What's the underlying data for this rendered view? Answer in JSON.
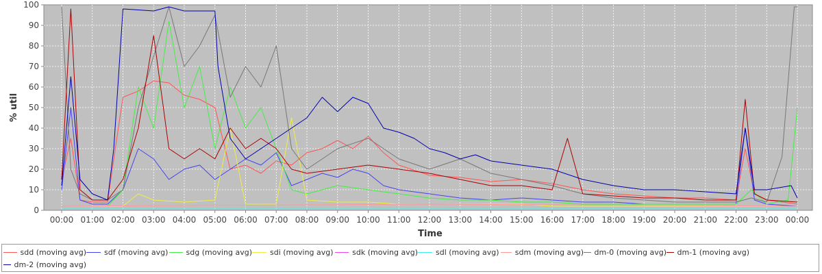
{
  "chart_data": {
    "type": "line",
    "title": "",
    "xlabel": "Time",
    "ylabel": "% util",
    "ylim": [
      0,
      100
    ],
    "y_ticks": [
      "0",
      "10",
      "20",
      "30",
      "40",
      "50",
      "60",
      "70",
      "80",
      "90",
      "100"
    ],
    "x_ticks": [
      "00:00",
      "01:00",
      "02:00",
      "03:00",
      "04:00",
      "05:00",
      "06:00",
      "07:00",
      "08:00",
      "09:00",
      "10:00",
      "11:00",
      "12:00",
      "13:00",
      "14:00",
      "15:00",
      "16:00",
      "17:00",
      "18:00",
      "19:00",
      "20:00",
      "21:00",
      "22:00",
      "23:00",
      "00:00"
    ],
    "x_hours": [
      0,
      1,
      2,
      3,
      4,
      5,
      6,
      7,
      8,
      9,
      10,
      11,
      12,
      13,
      14,
      15,
      16,
      17,
      18,
      19,
      20,
      21,
      22,
      23,
      24
    ],
    "grid": true,
    "legend_position": "bottom",
    "plot_background": "#c0c0c0",
    "series": [
      {
        "name": "sdd (moving avg)",
        "color": "#ff5555",
        "x": [
          0,
          0.3,
          0.6,
          1,
          1.5,
          1.75,
          2,
          2.5,
          3,
          3.5,
          4,
          4.5,
          5,
          5.5,
          6,
          6.5,
          7,
          7.5,
          8,
          8.5,
          9,
          9.5,
          10,
          10.5,
          11,
          12,
          13,
          14,
          15,
          16,
          17,
          18,
          19,
          20,
          21,
          22,
          22.3,
          22.6,
          23,
          24
        ],
        "y": [
          15,
          35,
          5,
          4,
          4,
          30,
          55,
          58,
          63,
          62,
          56,
          54,
          50,
          20,
          22,
          18,
          24,
          22,
          28,
          30,
          34,
          30,
          36,
          28,
          22,
          17,
          16,
          14,
          15,
          13,
          10,
          8,
          7,
          6,
          6,
          5,
          30,
          8,
          5,
          3
        ]
      },
      {
        "name": "sdf (moving avg)",
        "color": "#4444ee",
        "x": [
          0,
          0.3,
          0.6,
          1,
          1.5,
          2,
          2.5,
          3,
          3.5,
          4,
          4.5,
          5,
          5.5,
          6,
          6.5,
          7,
          7.5,
          8,
          8.5,
          9,
          9.5,
          10,
          10.5,
          11,
          12,
          13,
          14,
          15,
          16,
          17,
          18,
          19,
          20,
          21,
          22,
          22.3,
          22.6,
          23,
          24
        ],
        "y": [
          10,
          50,
          5,
          3,
          3,
          10,
          30,
          25,
          15,
          20,
          22,
          15,
          20,
          25,
          22,
          28,
          12,
          15,
          18,
          16,
          20,
          18,
          12,
          10,
          8,
          6,
          5,
          6,
          5,
          4,
          4,
          3,
          3,
          3,
          3,
          40,
          5,
          3,
          2
        ]
      },
      {
        "name": "sdg (moving avg)",
        "color": "#44ee44",
        "x": [
          0,
          0.5,
          1,
          1.5,
          2,
          2.5,
          3,
          3.5,
          4,
          4.5,
          5,
          5.5,
          6,
          6.5,
          7,
          7.5,
          8,
          9,
          10,
          11,
          12,
          13,
          14,
          15,
          16,
          17,
          18,
          19,
          20,
          21,
          22,
          22.5,
          23,
          23.7,
          24
        ],
        "y": [
          2,
          2,
          2,
          2,
          10,
          60,
          40,
          92,
          50,
          70,
          30,
          60,
          40,
          50,
          30,
          10,
          8,
          12,
          10,
          8,
          6,
          5,
          5,
          4,
          4,
          3,
          3,
          3,
          3,
          3,
          3,
          10,
          3,
          5,
          50
        ]
      },
      {
        "name": "sdi (moving avg)",
        "color": "#eeee44",
        "x": [
          0,
          1,
          2,
          2.5,
          3,
          4,
          5,
          5.5,
          6,
          6.5,
          7,
          7.5,
          8,
          9,
          10,
          11,
          12,
          13,
          14,
          15,
          16,
          17,
          18,
          19,
          20,
          21,
          22,
          23,
          24
        ],
        "y": [
          2,
          2,
          2,
          8,
          5,
          4,
          5,
          40,
          3,
          3,
          3,
          45,
          5,
          4,
          4,
          3,
          3,
          3,
          3,
          3,
          2,
          2,
          2,
          2,
          2,
          2,
          2,
          2,
          2
        ]
      },
      {
        "name": "sdk (moving avg)",
        "color": "#ee44ee",
        "x": [
          0,
          24
        ],
        "y": [
          1,
          1
        ]
      },
      {
        "name": "sdl (moving avg)",
        "color": "#44eeee",
        "x": [
          0,
          24
        ],
        "y": [
          1,
          1
        ]
      },
      {
        "name": "sdm (moving avg)",
        "color": "#ff9999",
        "x": [
          0,
          12,
          24
        ],
        "y": [
          2,
          3,
          2
        ]
      },
      {
        "name": "dm-0 (moving avg)",
        "color": "#777777",
        "x": [
          0,
          0.3,
          0.6,
          1,
          1.5,
          2,
          2.5,
          3,
          3.5,
          4,
          4.5,
          5,
          5.5,
          6,
          6.5,
          7,
          7.5,
          8,
          9,
          10,
          10.5,
          11,
          12,
          13,
          14,
          15,
          16,
          17,
          18,
          19,
          20,
          21,
          22,
          22.5,
          23,
          23.5,
          23.9,
          24
        ],
        "y": [
          99,
          20,
          8,
          5,
          5,
          10,
          50,
          75,
          99,
          70,
          80,
          95,
          55,
          70,
          60,
          80,
          30,
          20,
          30,
          35,
          30,
          25,
          20,
          25,
          18,
          15,
          12,
          8,
          6,
          5,
          4,
          4,
          4,
          6,
          4,
          26,
          99,
          99
        ]
      },
      {
        "name": "dm-1 (moving avg)",
        "color": "#aa0000",
        "x": [
          0,
          0.3,
          0.6,
          1,
          1.5,
          2,
          2.5,
          3,
          3.5,
          4,
          4.5,
          5,
          5.5,
          6,
          6.5,
          7,
          7.5,
          8,
          9,
          10,
          11,
          12,
          13,
          14,
          15,
          16,
          16.5,
          17,
          18,
          19,
          20,
          21,
          22,
          22.3,
          22.6,
          23,
          24
        ],
        "y": [
          15,
          98,
          10,
          5,
          5,
          15,
          40,
          85,
          30,
          25,
          30,
          25,
          40,
          30,
          35,
          30,
          20,
          18,
          20,
          22,
          20,
          18,
          15,
          12,
          12,
          10,
          35,
          8,
          7,
          6,
          6,
          5,
          5,
          54,
          8,
          5,
          4
        ]
      },
      {
        "name": "dm-2 (moving avg)",
        "color": "#0000aa",
        "x": [
          0,
          0.3,
          0.6,
          1,
          1.5,
          1.7,
          2,
          3,
          3.5,
          4,
          5,
          5.1,
          5.5,
          6,
          6.5,
          7,
          7.5,
          8,
          8.5,
          9,
          9.5,
          10,
          10.5,
          11,
          11.5,
          12,
          12.5,
          13,
          13.5,
          14,
          15,
          16,
          17,
          18,
          19,
          20,
          21,
          22,
          22.3,
          22.6,
          23,
          23.8,
          24
        ],
        "y": [
          12,
          65,
          15,
          8,
          5,
          30,
          98,
          97,
          99,
          97,
          97,
          70,
          35,
          25,
          30,
          35,
          40,
          45,
          55,
          48,
          55,
          52,
          40,
          38,
          35,
          30,
          28,
          25,
          27,
          24,
          22,
          20,
          15,
          12,
          10,
          10,
          9,
          8,
          40,
          10,
          10,
          12,
          6
        ]
      }
    ]
  }
}
